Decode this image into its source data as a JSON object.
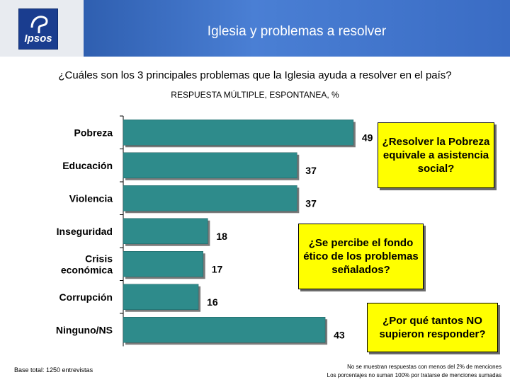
{
  "header": {
    "logo_text": "Ipsos",
    "title": "Iglesia y problemas a resolver"
  },
  "question": "¿Cuáles son los 3 principales problemas que la Iglesia ayuda a resolver en el país?",
  "subtitle": "RESPUESTA MÚLTIPLE, ESPONTANEA, %",
  "chart_data": {
    "type": "bar",
    "orientation": "horizontal",
    "categories": [
      "Pobreza",
      "Educación",
      "Violencia",
      "Inseguridad",
      "Crisis\neconómica",
      "Corrupción",
      "Ninguno/NS"
    ],
    "values": [
      49,
      37,
      37,
      18,
      17,
      16,
      43
    ],
    "xlim": [
      0,
      60
    ],
    "grid": false,
    "bar_color": "#2e8b8b"
  },
  "callouts": [
    "¿Resolver la Pobreza equivale a asistencia social?",
    "¿Se percibe el fondo ético de los problemas señalados?",
    "¿Por qué tantos NO supieron responder?"
  ],
  "footer": {
    "base": "Base total: 1250 entrevistas",
    "note_line1": "No se muestran respuestas con menos del 2% de menciones",
    "note_line2": "Los porcentajes no suman 100% por tratarse de menciones sumadas"
  }
}
